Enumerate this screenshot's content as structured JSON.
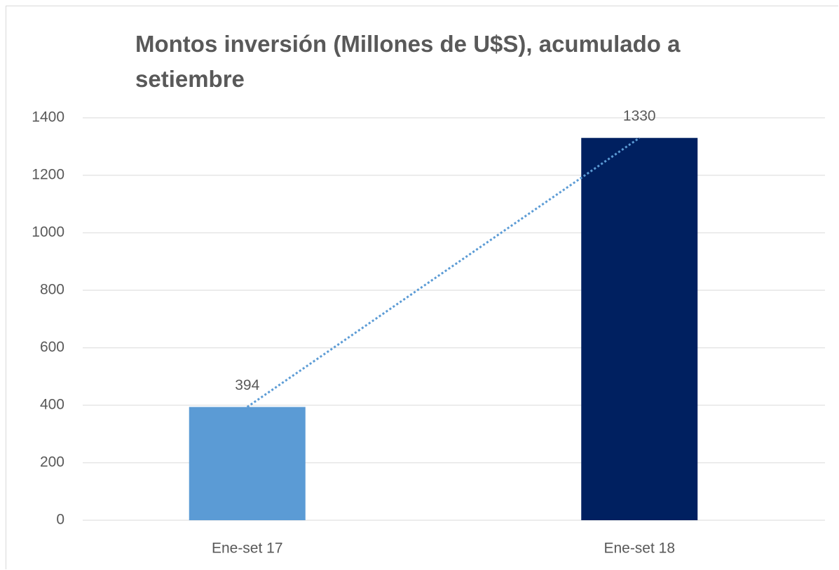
{
  "chart_data": {
    "type": "bar",
    "title": "Montos inversión (Millones de U$S), acumulado a setiembre",
    "categories": [
      "Ene-set 17",
      "Ene-set 18"
    ],
    "values": [
      394,
      1330
    ],
    "colors": [
      "#5b9bd5",
      "#002060"
    ],
    "ylim": [
      0,
      1400
    ],
    "yticks": [
      0,
      200,
      400,
      600,
      800,
      1000,
      1200,
      1400
    ],
    "grid": true,
    "trendline": {
      "type": "linear",
      "color": "#5b9bd5",
      "style": "dotted"
    }
  }
}
